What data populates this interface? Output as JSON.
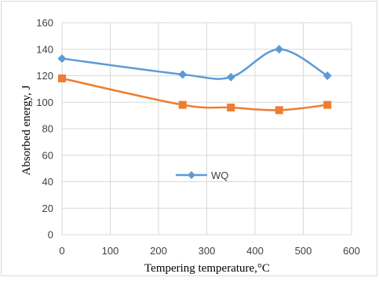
{
  "chart_data": {
    "type": "line",
    "xlabel": "Tempering  temperature,°C",
    "ylabel": "Absorbed energy, J",
    "xlim": [
      0,
      600
    ],
    "ylim": [
      0,
      160
    ],
    "x_ticks": [
      0,
      100,
      200,
      300,
      400,
      500,
      600
    ],
    "y_ticks": [
      0,
      20,
      40,
      60,
      80,
      100,
      120,
      140,
      160
    ],
    "grid": true,
    "smooth": true,
    "legend_position": "center",
    "series": [
      {
        "name": "WQ",
        "color": "#5b9bd5",
        "marker": "diamond",
        "x": [
          0,
          250,
          350,
          450,
          550
        ],
        "values": [
          133,
          121,
          119,
          140,
          120
        ]
      },
      {
        "color": "#ed7d31",
        "marker": "square",
        "x": [
          0,
          250,
          350,
          450,
          550
        ],
        "values": [
          118,
          98,
          96,
          94,
          98
        ]
      }
    ]
  }
}
